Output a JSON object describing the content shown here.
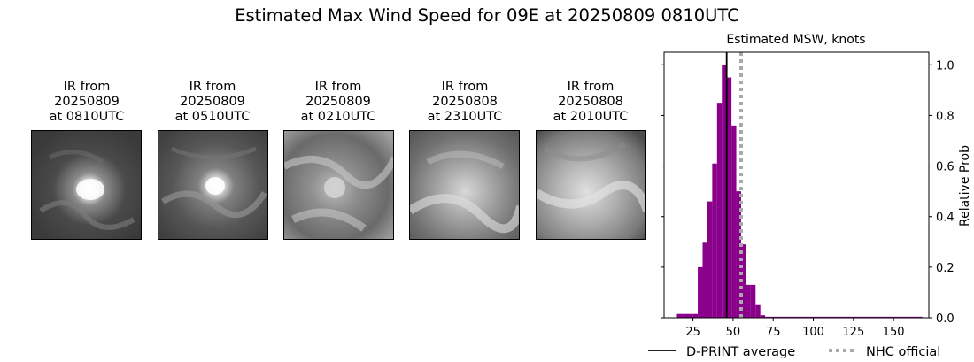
{
  "figure": {
    "title": "Estimated Max Wind Speed for 09E at 20250809 0810UTC"
  },
  "ir_panels": [
    {
      "line1": "IR from",
      "line2": "20250809",
      "line3": "at 0810UTC"
    },
    {
      "line1": "IR from",
      "line2": "20250809",
      "line3": "at 0510UTC"
    },
    {
      "line1": "IR from",
      "line2": "20250809",
      "line3": "at 0210UTC"
    },
    {
      "line1": "IR from",
      "line2": "20250808",
      "line3": "at 2310UTC"
    },
    {
      "line1": "IR from",
      "line2": "20250808",
      "line3": "at 2010UTC"
    }
  ],
  "chart_data": {
    "type": "bar",
    "title": "Estimated MSW, knots",
    "xlabel": "",
    "ylabel": "Relative Prob",
    "xlim": [
      7,
      172
    ],
    "ylim": [
      0,
      1.05
    ],
    "x_ticks": [
      25,
      50,
      75,
      100,
      125,
      150
    ],
    "y_ticks": [
      0.0,
      0.2,
      0.4,
      0.6,
      0.8,
      1.0
    ],
    "y_tick_labels": [
      "0.0",
      "0.2",
      "0.4",
      "0.6",
      "0.8",
      "1.0"
    ],
    "y_axis_side": "right",
    "bar_color": "#8b008b",
    "bins": [
      {
        "x0": 15,
        "x1": 20,
        "value": 0.015
      },
      {
        "x0": 20,
        "x1": 25,
        "value": 0.015
      },
      {
        "x0": 25,
        "x1": 28,
        "value": 0.015
      },
      {
        "x0": 28,
        "x1": 31,
        "value": 0.2
      },
      {
        "x0": 31,
        "x1": 34,
        "value": 0.3
      },
      {
        "x0": 34,
        "x1": 37,
        "value": 0.46
      },
      {
        "x0": 37,
        "x1": 40,
        "value": 0.61
      },
      {
        "x0": 40,
        "x1": 43,
        "value": 0.85
      },
      {
        "x0": 43,
        "x1": 46,
        "value": 1.0
      },
      {
        "x0": 46,
        "x1": 49,
        "value": 0.95
      },
      {
        "x0": 49,
        "x1": 52,
        "value": 0.76
      },
      {
        "x0": 52,
        "x1": 55,
        "value": 0.5
      },
      {
        "x0": 55,
        "x1": 58,
        "value": 0.29
      },
      {
        "x0": 58,
        "x1": 61,
        "value": 0.13
      },
      {
        "x0": 61,
        "x1": 64,
        "value": 0.13
      },
      {
        "x0": 64,
        "x1": 67,
        "value": 0.05
      },
      {
        "x0": 67,
        "x1": 70,
        "value": 0.01
      },
      {
        "x0": 70,
        "x1": 90,
        "value": 0.004
      },
      {
        "x0": 90,
        "x1": 110,
        "value": 0.004
      },
      {
        "x0": 110,
        "x1": 130,
        "value": 0.004
      },
      {
        "x0": 130,
        "x1": 150,
        "value": 0.004
      },
      {
        "x0": 150,
        "x1": 168,
        "value": 0.004
      }
    ],
    "reference_lines": [
      {
        "name": "D-PRINT average",
        "x": 46,
        "color": "#000000",
        "style": "solid"
      },
      {
        "name": "NHC official",
        "x": 55,
        "color": "#a9a9a9",
        "style": "dotted"
      }
    ],
    "legend": {
      "placement": "bottom",
      "entries": [
        "D-PRINT average",
        "NHC official"
      ]
    }
  }
}
